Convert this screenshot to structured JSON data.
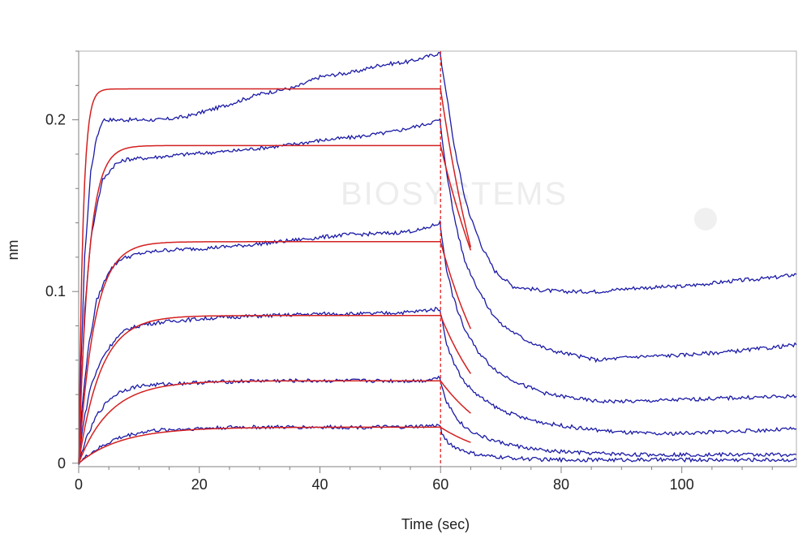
{
  "colors": {
    "measured": "#1a1aa6",
    "fit": "#d42020",
    "axis": "#808080",
    "marker": "#e02020",
    "watermark": "#ededed"
  },
  "watermark": {
    "text": "BIOSYSTEMS"
  },
  "chart_data": {
    "type": "line",
    "title": "",
    "xlabel": "Time (sec)",
    "ylabel": "nm",
    "xlim": [
      0,
      119
    ],
    "ylim": [
      -0.002,
      0.24
    ],
    "x_ticks": [
      0,
      20,
      40,
      60,
      80,
      100
    ],
    "x_tick_labels": [
      "0",
      "20",
      "40",
      "60",
      "80",
      "100"
    ],
    "y_ticks": [
      0,
      0.1,
      0.2
    ],
    "y_tick_labels": [
      "0",
      "0.1",
      "0.2"
    ],
    "grid": false,
    "legend": "none",
    "association_end": 60,
    "marker_line": {
      "x": 60
    },
    "measured_series": [
      {
        "points": [
          [
            0,
            0.0
          ],
          [
            0.4,
            0.06
          ],
          [
            1,
            0.12
          ],
          [
            2,
            0.17
          ],
          [
            3,
            0.19
          ],
          [
            4,
            0.2
          ],
          [
            8,
            0.2
          ],
          [
            14,
            0.2
          ],
          [
            18,
            0.202
          ],
          [
            24,
            0.208
          ],
          [
            30,
            0.215
          ],
          [
            36,
            0.219
          ],
          [
            40,
            0.225
          ],
          [
            46,
            0.228
          ],
          [
            50,
            0.232
          ],
          [
            55,
            0.234
          ],
          [
            58,
            0.237
          ],
          [
            59.9,
            0.239
          ],
          [
            60.2,
            0.232
          ],
          [
            61,
            0.215
          ],
          [
            62,
            0.19
          ],
          [
            63,
            0.172
          ],
          [
            64,
            0.155
          ],
          [
            65,
            0.143
          ],
          [
            67,
            0.125
          ],
          [
            69,
            0.112
          ],
          [
            72,
            0.103
          ],
          [
            76,
            0.101
          ],
          [
            80,
            0.1
          ],
          [
            86,
            0.1
          ],
          [
            92,
            0.102
          ],
          [
            100,
            0.103
          ],
          [
            108,
            0.106
          ],
          [
            115,
            0.108
          ],
          [
            119,
            0.11
          ]
        ]
      },
      {
        "points": [
          [
            0,
            0.0
          ],
          [
            0.4,
            0.04
          ],
          [
            1,
            0.09
          ],
          [
            2,
            0.13
          ],
          [
            3,
            0.15
          ],
          [
            4,
            0.165
          ],
          [
            6,
            0.174
          ],
          [
            8,
            0.177
          ],
          [
            12,
            0.178
          ],
          [
            18,
            0.18
          ],
          [
            26,
            0.182
          ],
          [
            34,
            0.185
          ],
          [
            40,
            0.188
          ],
          [
            46,
            0.19
          ],
          [
            52,
            0.193
          ],
          [
            57,
            0.197
          ],
          [
            59.9,
            0.2
          ],
          [
            60.2,
            0.19
          ],
          [
            61,
            0.17
          ],
          [
            62,
            0.148
          ],
          [
            63,
            0.132
          ],
          [
            64,
            0.118
          ],
          [
            66,
            0.103
          ],
          [
            68,
            0.09
          ],
          [
            70,
            0.081
          ],
          [
            74,
            0.072
          ],
          [
            78,
            0.066
          ],
          [
            82,
            0.063
          ],
          [
            86,
            0.06
          ],
          [
            92,
            0.062
          ],
          [
            100,
            0.063
          ],
          [
            108,
            0.065
          ],
          [
            114,
            0.067
          ],
          [
            119,
            0.069
          ]
        ]
      },
      {
        "points": [
          [
            0,
            0.0
          ],
          [
            0.5,
            0.03
          ],
          [
            1.5,
            0.065
          ],
          [
            3,
            0.095
          ],
          [
            5,
            0.112
          ],
          [
            7,
            0.119
          ],
          [
            10,
            0.122
          ],
          [
            14,
            0.124
          ],
          [
            20,
            0.125
          ],
          [
            28,
            0.127
          ],
          [
            36,
            0.13
          ],
          [
            44,
            0.133
          ],
          [
            52,
            0.134
          ],
          [
            57,
            0.136
          ],
          [
            59.9,
            0.14
          ],
          [
            60.2,
            0.132
          ],
          [
            61,
            0.113
          ],
          [
            62,
            0.098
          ],
          [
            63,
            0.087
          ],
          [
            64,
            0.078
          ],
          [
            66,
            0.066
          ],
          [
            68,
            0.058
          ],
          [
            70,
            0.052
          ],
          [
            74,
            0.045
          ],
          [
            78,
            0.04
          ],
          [
            82,
            0.038
          ],
          [
            86,
            0.036
          ],
          [
            92,
            0.036
          ],
          [
            100,
            0.037
          ],
          [
            108,
            0.038
          ],
          [
            119,
            0.039
          ]
        ]
      },
      {
        "points": [
          [
            0,
            0.0
          ],
          [
            0.6,
            0.02
          ],
          [
            2,
            0.045
          ],
          [
            4,
            0.062
          ],
          [
            6,
            0.072
          ],
          [
            8,
            0.078
          ],
          [
            11,
            0.081
          ],
          [
            16,
            0.083
          ],
          [
            24,
            0.085
          ],
          [
            32,
            0.086
          ],
          [
            40,
            0.087
          ],
          [
            48,
            0.087
          ],
          [
            55,
            0.088
          ],
          [
            59.9,
            0.09
          ],
          [
            60.2,
            0.084
          ],
          [
            61,
            0.07
          ],
          [
            62,
            0.06
          ],
          [
            63,
            0.053
          ],
          [
            64,
            0.047
          ],
          [
            66,
            0.04
          ],
          [
            68,
            0.035
          ],
          [
            70,
            0.031
          ],
          [
            74,
            0.026
          ],
          [
            78,
            0.023
          ],
          [
            84,
            0.02
          ],
          [
            90,
            0.018
          ],
          [
            96,
            0.017
          ],
          [
            104,
            0.018
          ],
          [
            112,
            0.019
          ],
          [
            119,
            0.02
          ]
        ]
      },
      {
        "points": [
          [
            0,
            0.0
          ],
          [
            1,
            0.012
          ],
          [
            3,
            0.028
          ],
          [
            5,
            0.037
          ],
          [
            7,
            0.042
          ],
          [
            10,
            0.045
          ],
          [
            14,
            0.046
          ],
          [
            20,
            0.047
          ],
          [
            30,
            0.048
          ],
          [
            40,
            0.048
          ],
          [
            50,
            0.048
          ],
          [
            57,
            0.048
          ],
          [
            59.9,
            0.05
          ],
          [
            60.2,
            0.045
          ],
          [
            61,
            0.036
          ],
          [
            62,
            0.03
          ],
          [
            63,
            0.025
          ],
          [
            64,
            0.021
          ],
          [
            66,
            0.017
          ],
          [
            68,
            0.014
          ],
          [
            70,
            0.012
          ],
          [
            74,
            0.009
          ],
          [
            78,
            0.007
          ],
          [
            84,
            0.006
          ],
          [
            92,
            0.005
          ],
          [
            100,
            0.005
          ],
          [
            110,
            0.005
          ],
          [
            119,
            0.005
          ]
        ]
      },
      {
        "points": [
          [
            0,
            0.0
          ],
          [
            2,
            0.006
          ],
          [
            4,
            0.01
          ],
          [
            6,
            0.014
          ],
          [
            9,
            0.017
          ],
          [
            12,
            0.019
          ],
          [
            18,
            0.02
          ],
          [
            26,
            0.021
          ],
          [
            36,
            0.021
          ],
          [
            46,
            0.021
          ],
          [
            54,
            0.021
          ],
          [
            59.9,
            0.022
          ],
          [
            60.2,
            0.018
          ],
          [
            61,
            0.013
          ],
          [
            62,
            0.01
          ],
          [
            64,
            0.007
          ],
          [
            66,
            0.005
          ],
          [
            68,
            0.004
          ],
          [
            72,
            0.003
          ],
          [
            78,
            0.002
          ],
          [
            86,
            0.002
          ],
          [
            96,
            0.002
          ],
          [
            106,
            0.002
          ],
          [
            119,
            0.002
          ]
        ]
      }
    ],
    "fit_curves": [
      {
        "plateau": 0.218,
        "kobs": 1.4,
        "dissociation_end": 65,
        "koff": 0.11
      },
      {
        "plateau": 0.185,
        "kobs": 0.6,
        "dissociation_end": 65,
        "koff": 0.08
      },
      {
        "plateau": 0.129,
        "kobs": 0.38,
        "dissociation_end": 65,
        "koff": 0.1
      },
      {
        "plateau": 0.086,
        "kobs": 0.27,
        "dissociation_end": 65,
        "koff": 0.1
      },
      {
        "plateau": 0.048,
        "kobs": 0.19,
        "dissociation_end": 65,
        "koff": 0.1
      },
      {
        "plateau": 0.021,
        "kobs": 0.14,
        "dissociation_end": 65,
        "koff": 0.11
      }
    ]
  }
}
